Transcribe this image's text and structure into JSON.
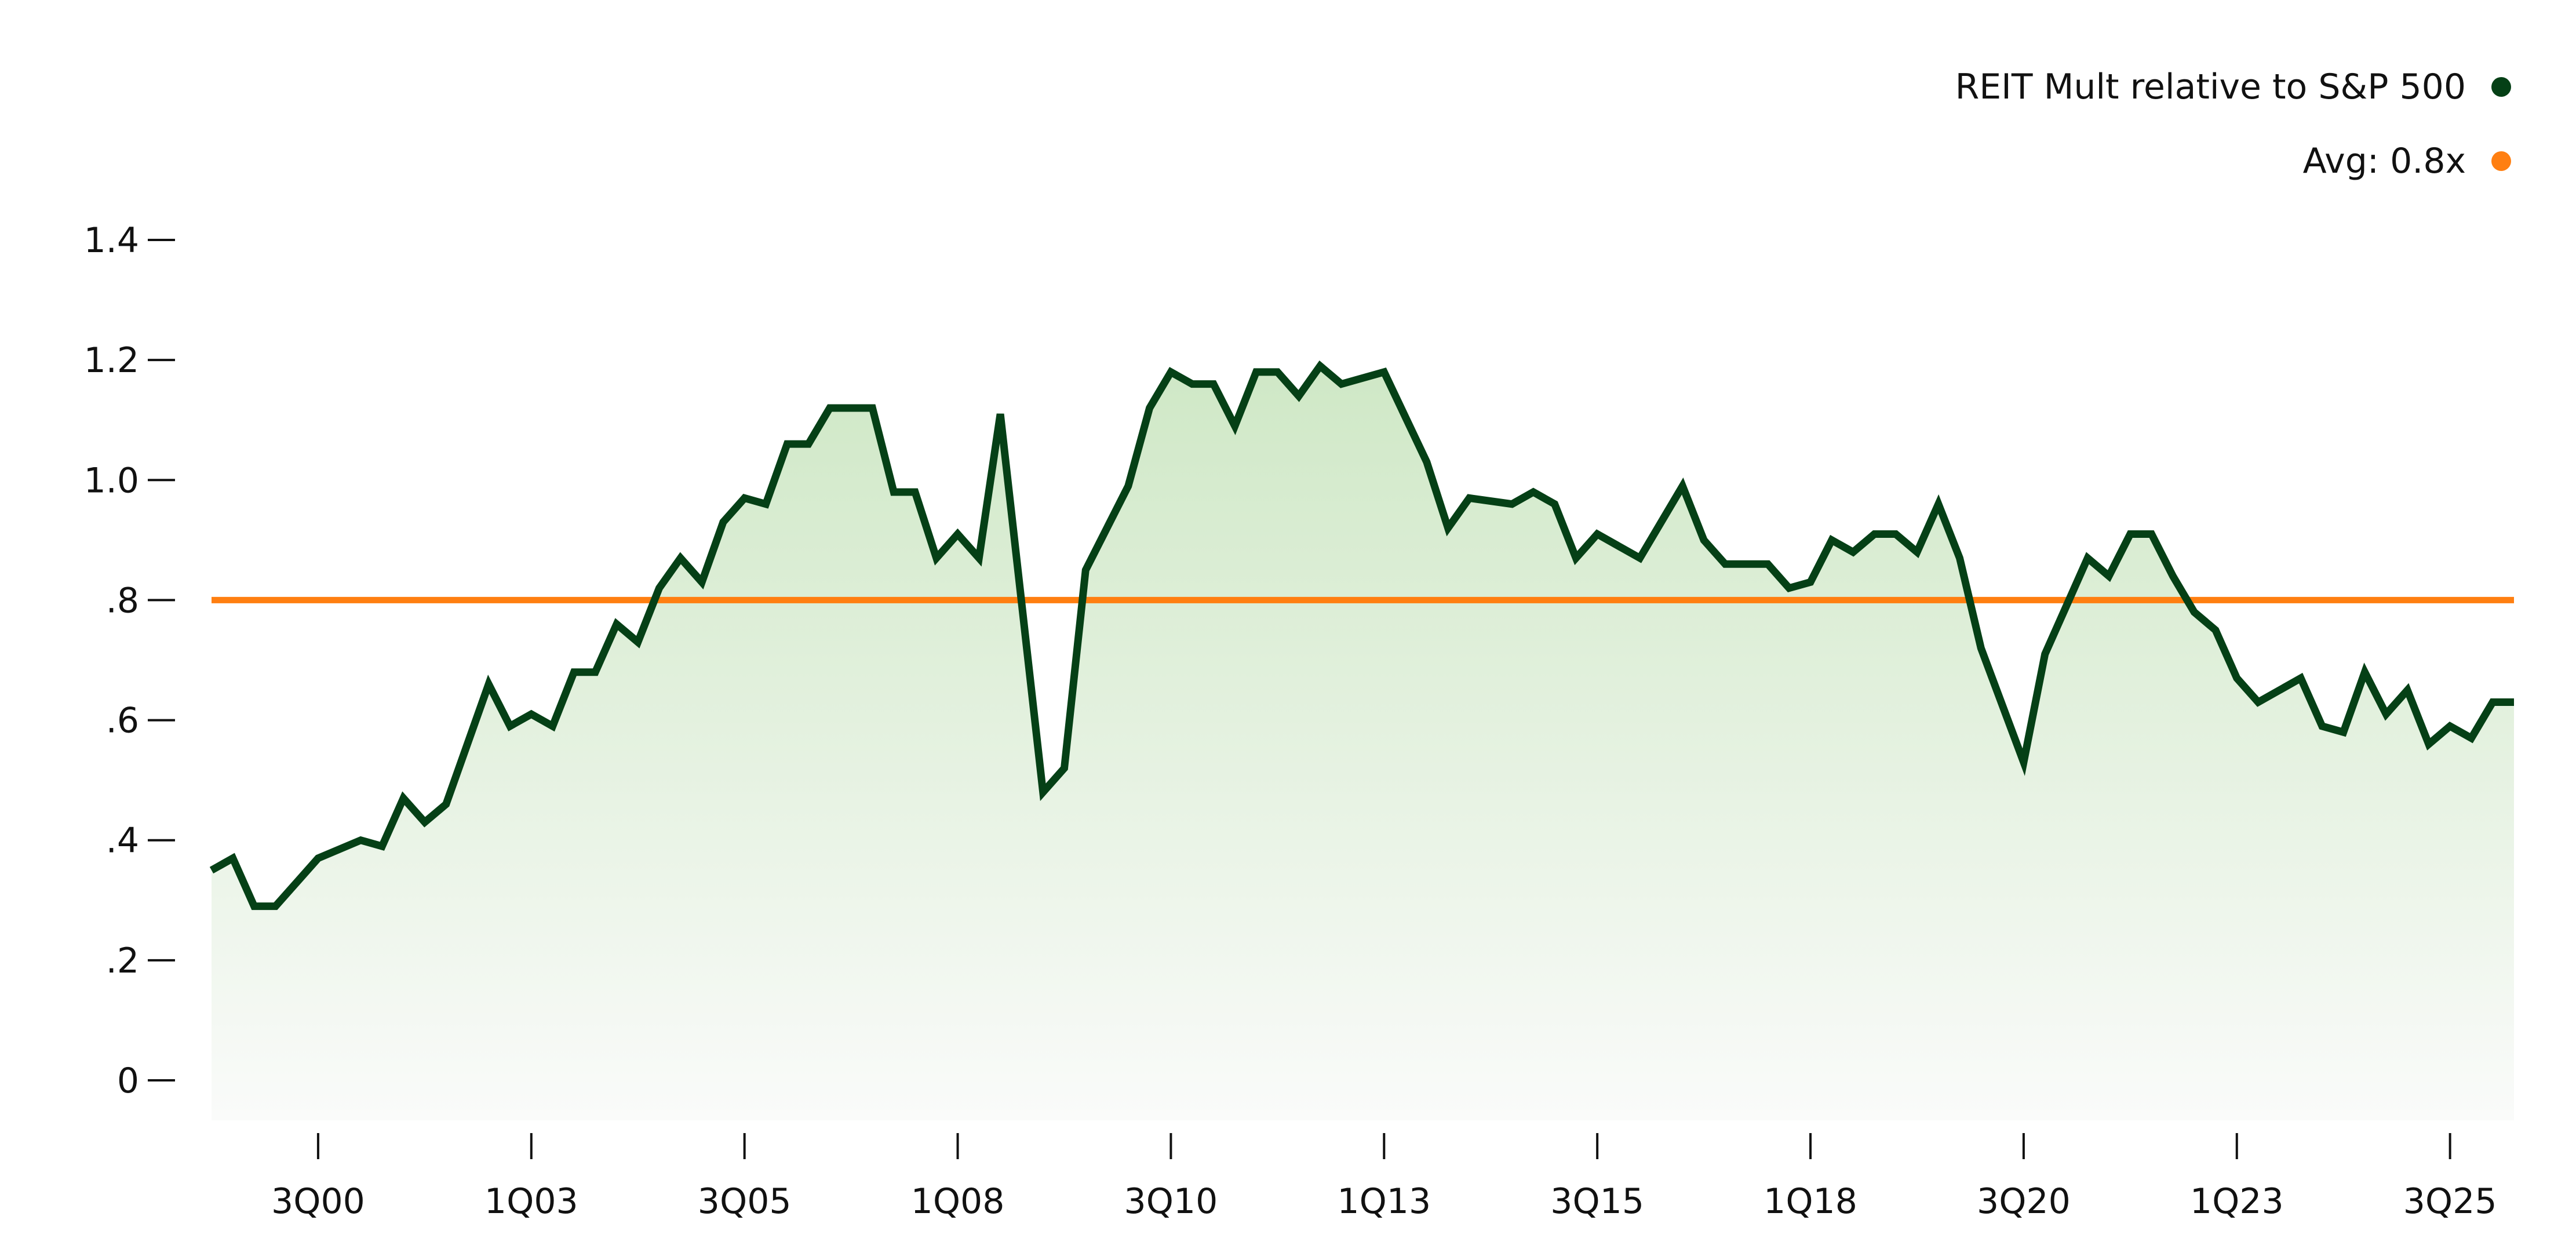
{
  "chart_data": {
    "type": "area",
    "title": "",
    "xlabel": "",
    "ylabel": "",
    "ylim": [
      -0.065,
      1.4
    ],
    "yticks": [
      {
        "value": 1.4,
        "label": "1.4"
      },
      {
        "value": 1.2,
        "label": "1.2"
      },
      {
        "value": 1.0,
        "label": "1.0"
      },
      {
        "value": 0.8,
        "label": ".8"
      },
      {
        "value": 0.6,
        "label": ".6"
      },
      {
        "value": 0.4,
        "label": ".4"
      },
      {
        "value": 0.2,
        "label": ".2"
      },
      {
        "value": 0,
        "label": "0"
      }
    ],
    "xticks": [
      "3Q00",
      "1Q03",
      "3Q05",
      "1Q08",
      "3Q10",
      "1Q13",
      "3Q15",
      "1Q18",
      "3Q20",
      "1Q23",
      "3Q25"
    ],
    "x_range": [
      "2Q99",
      "2Q26"
    ],
    "grid": false,
    "legend_position": "top-right",
    "colors": {
      "line": "#054016",
      "avg": "#ff7f11",
      "fill_top": "#cfe8c6",
      "fill_bottom": "#fafbfa"
    },
    "series": [
      {
        "name": "REIT Mult relative to S&P 500",
        "legend_label": "REIT Mult relative to S&P 500",
        "points": [
          [
            "2Q99",
            0.35
          ],
          [
            "3Q99",
            0.37
          ],
          [
            "4Q99",
            0.29
          ],
          [
            "1Q00",
            0.29
          ],
          [
            "3Q00",
            0.37
          ],
          [
            "1Q01",
            0.4
          ],
          [
            "2Q01",
            0.39
          ],
          [
            "3Q01",
            0.47
          ],
          [
            "4Q01",
            0.43
          ],
          [
            "1Q02",
            0.46
          ],
          [
            "3Q02",
            0.66
          ],
          [
            "4Q02",
            0.59
          ],
          [
            "1Q03",
            0.61
          ],
          [
            "2Q03",
            0.59
          ],
          [
            "3Q03",
            0.68
          ],
          [
            "4Q03",
            0.68
          ],
          [
            "1Q04",
            0.76
          ],
          [
            "2Q04",
            0.73
          ],
          [
            "3Q04",
            0.82
          ],
          [
            "4Q04",
            0.87
          ],
          [
            "1Q05",
            0.83
          ],
          [
            "2Q05",
            0.93
          ],
          [
            "3Q05",
            0.97
          ],
          [
            "4Q05",
            0.96
          ],
          [
            "1Q06",
            1.06
          ],
          [
            "2Q06",
            1.06
          ],
          [
            "3Q06",
            1.12
          ],
          [
            "1Q07",
            1.12
          ],
          [
            "2Q07",
            0.98
          ],
          [
            "3Q07",
            0.98
          ],
          [
            "4Q07",
            0.87
          ],
          [
            "1Q08",
            0.91
          ],
          [
            "2Q08",
            0.87
          ],
          [
            "3Q08",
            1.11
          ],
          [
            "1Q09",
            0.48
          ],
          [
            "2Q09",
            0.52
          ],
          [
            "3Q09",
            0.85
          ],
          [
            "1Q10",
            0.99
          ],
          [
            "2Q10",
            1.12
          ],
          [
            "3Q10",
            1.18
          ],
          [
            "4Q10",
            1.16
          ],
          [
            "1Q11",
            1.16
          ],
          [
            "2Q11",
            1.09
          ],
          [
            "3Q11",
            1.18
          ],
          [
            "4Q11",
            1.18
          ],
          [
            "1Q12",
            1.14
          ],
          [
            "2Q12",
            1.19
          ],
          [
            "3Q12",
            1.16
          ],
          [
            "1Q13",
            1.18
          ],
          [
            "3Q13",
            1.03
          ],
          [
            "4Q13",
            0.92
          ],
          [
            "1Q14",
            0.97
          ],
          [
            "3Q14",
            0.96
          ],
          [
            "4Q14",
            0.98
          ],
          [
            "1Q15",
            0.96
          ],
          [
            "2Q15",
            0.87
          ],
          [
            "3Q15",
            0.91
          ],
          [
            "1Q16",
            0.87
          ],
          [
            "3Q16",
            0.99
          ],
          [
            "4Q16",
            0.9
          ],
          [
            "1Q17",
            0.86
          ],
          [
            "3Q17",
            0.86
          ],
          [
            "4Q17",
            0.82
          ],
          [
            "1Q18",
            0.83
          ],
          [
            "2Q18",
            0.9
          ],
          [
            "3Q18",
            0.88
          ],
          [
            "4Q18",
            0.91
          ],
          [
            "1Q19",
            0.91
          ],
          [
            "2Q19",
            0.88
          ],
          [
            "3Q19",
            0.96
          ],
          [
            "4Q19",
            0.87
          ],
          [
            "1Q20",
            0.72
          ],
          [
            "3Q20",
            0.53
          ],
          [
            "4Q20",
            0.71
          ],
          [
            "1Q21",
            0.79
          ],
          [
            "2Q21",
            0.87
          ],
          [
            "3Q21",
            0.84
          ],
          [
            "4Q21",
            0.91
          ],
          [
            "1Q22",
            0.91
          ],
          [
            "2Q22",
            0.84
          ],
          [
            "3Q22",
            0.78
          ],
          [
            "4Q22",
            0.75
          ],
          [
            "1Q23",
            0.67
          ],
          [
            "2Q23",
            0.63
          ],
          [
            "4Q23",
            0.67
          ],
          [
            "1Q24",
            0.59
          ],
          [
            "2Q24",
            0.58
          ],
          [
            "3Q24",
            0.68
          ],
          [
            "4Q24",
            0.61
          ],
          [
            "1Q25",
            0.65
          ],
          [
            "2Q25",
            0.56
          ],
          [
            "3Q25",
            0.59
          ],
          [
            "4Q25",
            0.57
          ],
          [
            "1Q26",
            0.63
          ],
          [
            "2Q26",
            0.63
          ]
        ]
      },
      {
        "name": "Avg: 0.8x",
        "legend_label": "Avg: 0.8x",
        "constant": 0.8
      }
    ]
  }
}
